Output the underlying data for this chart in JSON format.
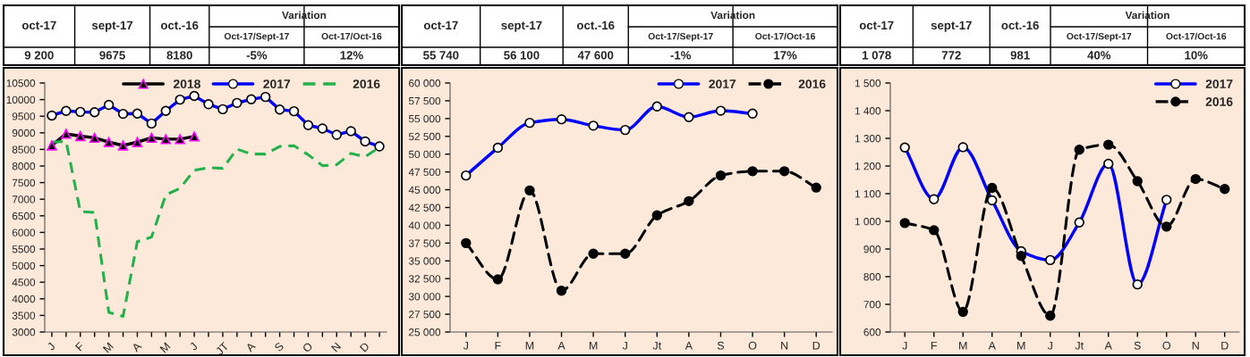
{
  "chart_data": [
    {
      "type": "line",
      "annotations": [
        "oct-17",
        "sept-17",
        "oct.-16",
        "Variation",
        "Oct-17/Sept-17",
        "Oct-17/Oct-16",
        "9 200",
        "9675",
        "8180",
        "-5%",
        "12%"
      ],
      "categories": [
        "J",
        null,
        "F",
        null,
        "M",
        null,
        "A",
        null,
        "M",
        null,
        "J",
        null,
        "JT",
        null,
        "A",
        null,
        "S",
        null,
        "O",
        null,
        "N",
        null,
        "D",
        null
      ],
      "series": [
        {
          "name": "2018",
          "color": "#000000",
          "marker": "triangle",
          "line_style": "solid",
          "values": [
            8620,
            8970,
            8900,
            8850,
            8720,
            8620,
            8720,
            8850,
            8810,
            8810,
            8890,
            null,
            null,
            null,
            null,
            null,
            null,
            null,
            null,
            null,
            null,
            null,
            null,
            null
          ]
        },
        {
          "name": "2017",
          "color": "#0000ff",
          "marker": "circle",
          "line_style": "solid",
          "values": [
            9520,
            9660,
            9630,
            9620,
            9840,
            9570,
            9580,
            9280,
            9660,
            10000,
            10110,
            9860,
            9710,
            9900,
            10010,
            10080,
            9700,
            9650,
            9230,
            9130,
            8940,
            9050,
            8740,
            8590
          ]
        },
        {
          "name": "2016",
          "color": "#22b14c",
          "marker": "none",
          "line_style": "dashed",
          "values": [
            8720,
            8740,
            6630,
            6600,
            3590,
            3470,
            5720,
            5860,
            7130,
            7330,
            7870,
            7950,
            7930,
            8510,
            8360,
            8360,
            8590,
            8610,
            8340,
            8010,
            8040,
            8380,
            8280,
            8560
          ]
        }
      ],
      "ylim": [
        3000,
        10500
      ],
      "yticks": [
        3000,
        3500,
        4000,
        4500,
        5000,
        5500,
        6000,
        6500,
        7000,
        7500,
        8000,
        8500,
        9000,
        9500,
        10000,
        10500
      ],
      "grid": false,
      "legend": "top right"
    },
    {
      "type": "line",
      "annotations": [
        "oct-17",
        "sept-17",
        "oct.-16",
        "Variation",
        "Oct-17/Sept-17",
        "Oct-17/Oct-16",
        "55 740",
        "56 100",
        "47 600",
        "-1%",
        "17%"
      ],
      "categories": [
        "J",
        "F",
        "M",
        "A",
        "M",
        "J",
        "Jt",
        "A",
        "S",
        "O",
        "N",
        "D"
      ],
      "series": [
        {
          "name": "2017",
          "color": "#0000ff",
          "marker": "circle",
          "line_style": "solid",
          "values": [
            47000,
            50900,
            54400,
            54900,
            54000,
            53400,
            56700,
            55200,
            56100,
            55700,
            null,
            null
          ]
        },
        {
          "name": "2016",
          "color": "#000000",
          "marker": "circle",
          "line_style": "dashed",
          "values": [
            37500,
            32400,
            44900,
            30800,
            36000,
            36000,
            41400,
            43400,
            47000,
            47600,
            47600,
            45300
          ]
        }
      ],
      "ylim": [
        25000,
        60000
      ],
      "yticks": [
        {
          "value": 25000,
          "label": "25 000"
        },
        {
          "value": 27500,
          "label": "27 500"
        },
        {
          "value": 30000,
          "label": "30 000"
        },
        {
          "value": 32500,
          "label": "32 500"
        },
        {
          "value": 35000,
          "label": "35 000"
        },
        {
          "value": 37500,
          "label": "37 500"
        },
        {
          "value": 40000,
          "label": "40 000"
        },
        {
          "value": 42500,
          "label": "42 500"
        },
        {
          "value": 45000,
          "label": "45 000"
        },
        {
          "value": 47500,
          "label": "47 500"
        },
        {
          "value": 50000,
          "label": "50 000"
        },
        {
          "value": 52500,
          "label": "52 500"
        },
        {
          "value": 55000,
          "label": "55 000"
        },
        {
          "value": 57500,
          "label": "57 500"
        },
        {
          "value": 60000,
          "label": "60 000"
        }
      ],
      "grid": false,
      "legend": "top right"
    },
    {
      "type": "line",
      "annotations": [
        "oct-17",
        "sept-17",
        "oct.-16",
        "Variation",
        "Oct-17/Sept-17",
        "Oct-17/Oct-16",
        "1 078",
        "772",
        "981",
        "40%",
        "10%"
      ],
      "categories": [
        "J",
        "F",
        "M",
        "A",
        "M",
        "J",
        "Jt",
        "A",
        "S",
        "O",
        "N",
        "D"
      ],
      "series": [
        {
          "name": "2017",
          "color": "#0000ff",
          "marker": "circle",
          "line_style": "solid",
          "values": [
            1267,
            1080,
            1268,
            1076,
            892,
            860,
            996,
            1208,
            772,
            1078,
            null,
            null
          ]
        },
        {
          "name": "2016",
          "color": "#000000",
          "marker": "circle",
          "line_style": "dashed",
          "values": [
            994,
            968,
            673,
            1121,
            875,
            659,
            1259,
            1277,
            1145,
            981,
            1153,
            1117
          ]
        }
      ],
      "ylim": [
        600,
        1500
      ],
      "yticks": [
        {
          "value": 600,
          "label": "600"
        },
        {
          "value": 700,
          "label": "700"
        },
        {
          "value": 800,
          "label": "800"
        },
        {
          "value": 900,
          "label": "900"
        },
        {
          "value": 1000,
          "label": "1 000"
        },
        {
          "value": 1100,
          "label": "1 100"
        },
        {
          "value": 1200,
          "label": "1 200"
        },
        {
          "value": 1300,
          "label": "1 300"
        },
        {
          "value": 1400,
          "label": "1 400"
        },
        {
          "value": 1500,
          "label": "1 500"
        }
      ],
      "grid": false,
      "legend": "top right"
    }
  ]
}
